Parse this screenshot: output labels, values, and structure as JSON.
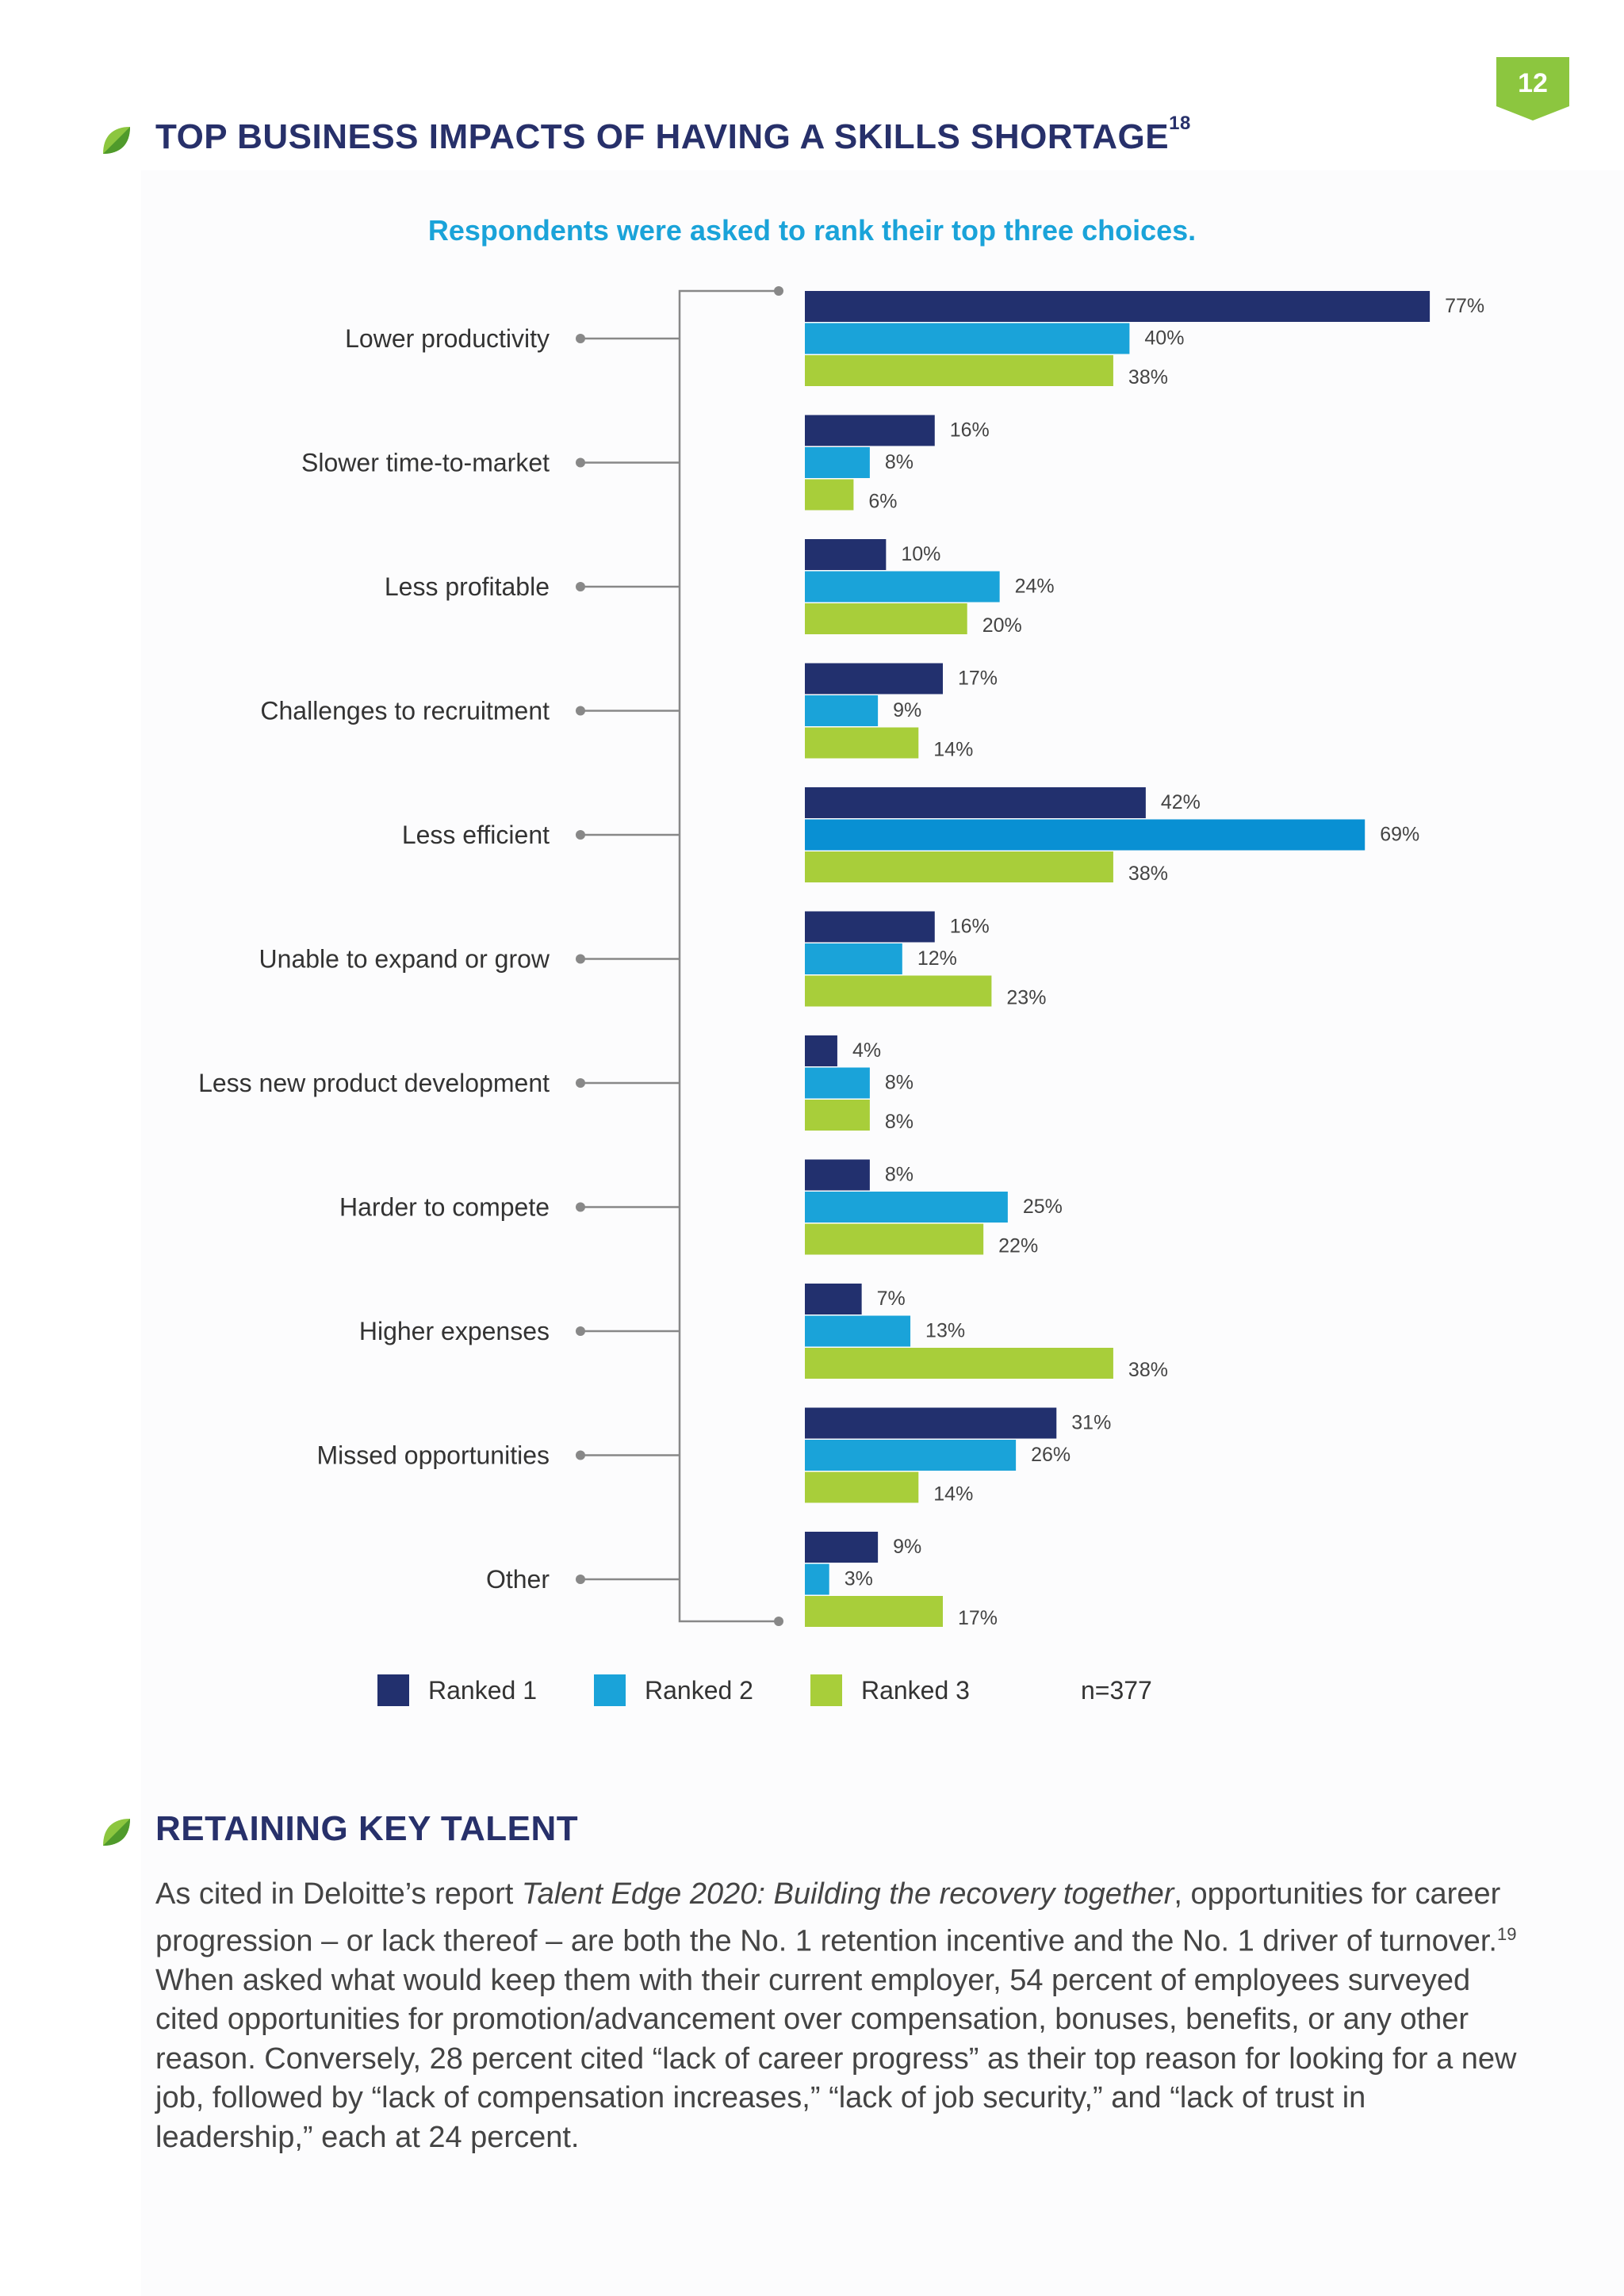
{
  "page": {
    "number": "12"
  },
  "colors": {
    "ranked1": "#22306e",
    "ranked2": "#1aa3d9",
    "ranked2_highlight": "#0990d3",
    "ranked3": "#a8ce3a",
    "accent_green": "#8cc63f",
    "title_navy": "#27306a",
    "subtitle_blue": "#1aa3d9",
    "connector_gray": "#888888"
  },
  "sections": {
    "chart": {
      "title": "TOP BUSINESS IMPACTS OF HAVING A SKILLS SHORTAGE",
      "title_superscript": "18",
      "subtitle": "Respondents were asked to rank their top three choices."
    },
    "retaining": {
      "title": "RETAINING KEY TALENT",
      "body_before_italic": "As cited in Deloitte’s report ",
      "body_italic": "Talent Edge 2020: Building the recovery together",
      "body_after_italic": ", opportunities for career progression – or lack thereof – are both the No. 1 retention incentive and the No. 1 driver of turnover.",
      "body_superscript": "19",
      "body_rest": " When asked what would keep them with their current employer, 54 percent of employees surveyed cited opportunities for promotion/advancement over compensation, bonuses, benefits, or any other reason. Conversely, 28 percent cited “lack of career progress” as their top reason for looking for a new job, followed by “lack of compensation increases,” “lack of job security,” and “lack of trust in leadership,” each at 24 percent."
    }
  },
  "legend": {
    "items": [
      "Ranked 1",
      "Ranked 2",
      "Ranked 3"
    ],
    "n_label": "n=377"
  },
  "chart_data": {
    "type": "bar",
    "orientation": "horizontal",
    "title": "TOP BUSINESS IMPACTS OF HAVING A SKILLS SHORTAGE",
    "subtitle": "Respondents were asked to rank their top three choices.",
    "value_suffix": "%",
    "xlim": [
      0,
      100
    ],
    "grid": false,
    "legend_position": "bottom",
    "n": "n=377",
    "highlight": {
      "series": 1,
      "category": 4
    },
    "categories": [
      "Lower productivity",
      "Slower time-to-market",
      "Less profitable",
      "Challenges to recruitment",
      "Less efficient",
      "Unable to expand or grow",
      "Less new product development",
      "Harder to compete",
      "Higher expenses",
      "Missed opportunities",
      "Other"
    ],
    "series": [
      {
        "name": "Ranked 1",
        "values": [
          77,
          16,
          10,
          17,
          42,
          16,
          4,
          8,
          7,
          31,
          9
        ]
      },
      {
        "name": "Ranked 2",
        "values": [
          40,
          8,
          24,
          9,
          69,
          12,
          8,
          25,
          13,
          26,
          3
        ]
      },
      {
        "name": "Ranked 3",
        "values": [
          38,
          6,
          20,
          14,
          38,
          23,
          8,
          22,
          38,
          14,
          17
        ]
      }
    ]
  }
}
